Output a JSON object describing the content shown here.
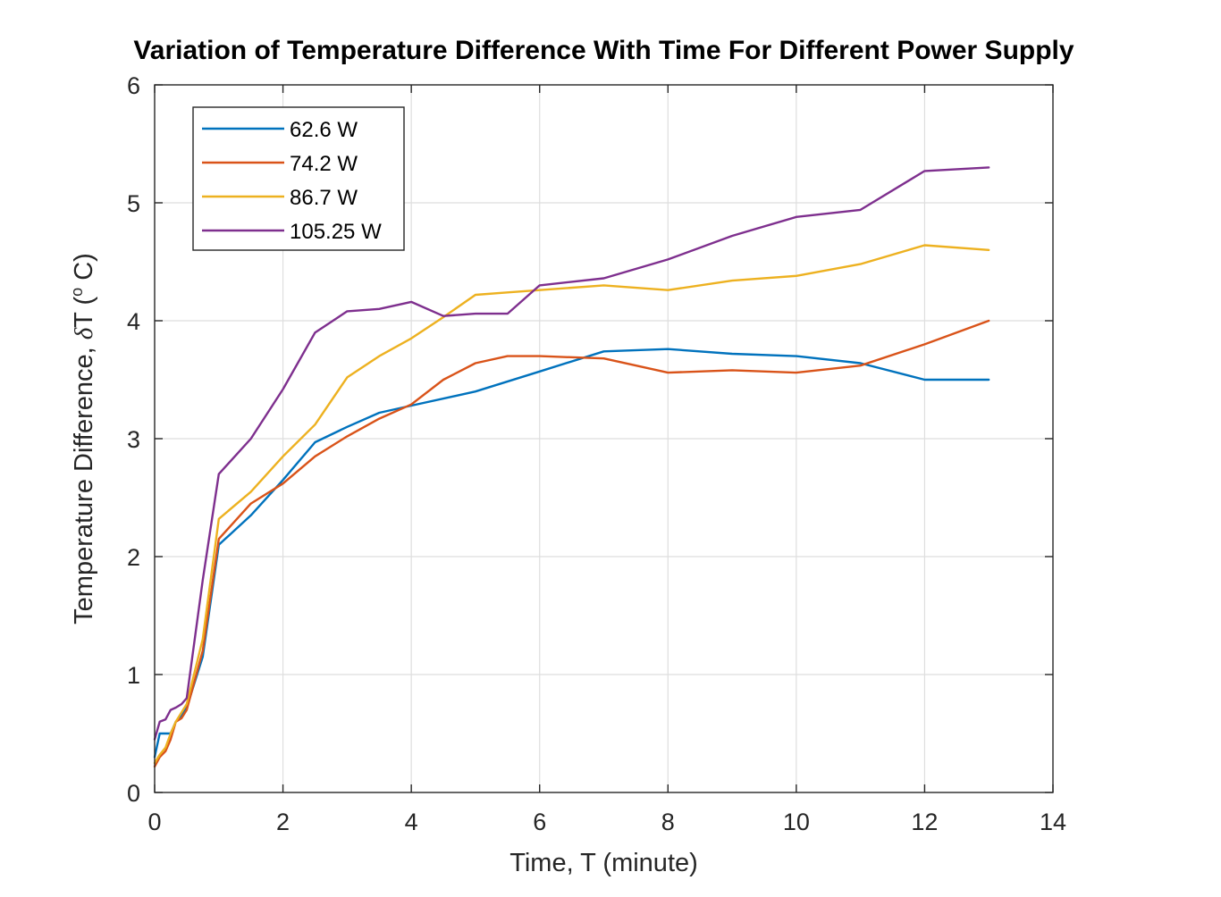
{
  "chart_data": {
    "type": "line",
    "title": "Variation of Temperature Difference With Time For Different Power Supply",
    "xlabel": "Time, T (minute)",
    "ylabel_prefix": "Temperature Difference, ",
    "ylabel_delta": "δ",
    "ylabel_mid": "T (",
    "ylabel_sup": "o",
    "ylabel_suffix": " C)",
    "xlim": [
      0,
      14
    ],
    "ylim": [
      0,
      6
    ],
    "xticks": [
      0,
      2,
      4,
      6,
      8,
      10,
      12,
      14
    ],
    "yticks": [
      0,
      1,
      2,
      3,
      4,
      5,
      6
    ],
    "grid": true,
    "legend_position": "top-left",
    "series": [
      {
        "name": "62.6 W",
        "color": "#0072bd",
        "x": [
          0,
          0.08,
          0.17,
          0.25,
          0.33,
          0.42,
          0.5,
          0.75,
          1,
          1.5,
          2,
          2.5,
          3,
          3.5,
          4,
          5,
          6,
          7,
          8,
          9,
          10,
          11,
          12,
          13
        ],
        "y": [
          0.3,
          0.5,
          0.5,
          0.5,
          0.6,
          0.65,
          0.72,
          1.15,
          2.1,
          2.35,
          2.65,
          2.97,
          3.1,
          3.22,
          3.28,
          3.4,
          3.57,
          3.74,
          3.76,
          3.72,
          3.7,
          3.64,
          3.5,
          3.5
        ]
      },
      {
        "name": "74.2 W",
        "color": "#d95319",
        "x": [
          0,
          0.08,
          0.17,
          0.25,
          0.33,
          0.42,
          0.5,
          0.75,
          1,
          1.5,
          2,
          2.5,
          3,
          3.5,
          4,
          4.5,
          5,
          5.5,
          6,
          7,
          8,
          9,
          10,
          11,
          12,
          13
        ],
        "y": [
          0.22,
          0.3,
          0.35,
          0.45,
          0.6,
          0.63,
          0.7,
          1.2,
          2.15,
          2.45,
          2.62,
          2.85,
          3.02,
          3.17,
          3.29,
          3.5,
          3.64,
          3.7,
          3.7,
          3.68,
          3.56,
          3.58,
          3.56,
          3.62,
          3.8,
          4.0
        ]
      },
      {
        "name": "86.7 W",
        "color": "#edb120",
        "x": [
          0,
          0.08,
          0.17,
          0.25,
          0.33,
          0.42,
          0.5,
          0.75,
          1,
          1.5,
          2,
          2.5,
          3,
          3.5,
          4,
          4.5,
          5,
          5.5,
          6,
          7,
          8,
          9,
          10,
          11,
          12,
          13
        ],
        "y": [
          0.25,
          0.32,
          0.38,
          0.5,
          0.6,
          0.68,
          0.75,
          1.3,
          2.32,
          2.55,
          2.85,
          3.12,
          3.52,
          3.7,
          3.85,
          4.03,
          4.22,
          4.24,
          4.26,
          4.3,
          4.26,
          4.34,
          4.38,
          4.48,
          4.64,
          4.6
        ]
      },
      {
        "name": "105.25 W",
        "color": "#7e2f8e",
        "x": [
          0,
          0.08,
          0.17,
          0.25,
          0.33,
          0.42,
          0.5,
          0.75,
          1,
          1.5,
          2,
          2.5,
          3,
          3.5,
          4,
          4.5,
          5,
          5.5,
          6,
          7,
          8,
          9,
          10,
          11,
          12,
          13
        ],
        "y": [
          0.45,
          0.6,
          0.62,
          0.7,
          0.72,
          0.75,
          0.8,
          1.8,
          2.7,
          3.0,
          3.42,
          3.9,
          4.08,
          4.1,
          4.16,
          4.04,
          4.06,
          4.06,
          4.3,
          4.36,
          4.52,
          4.72,
          4.88,
          4.94,
          5.27,
          5.3
        ]
      }
    ]
  }
}
